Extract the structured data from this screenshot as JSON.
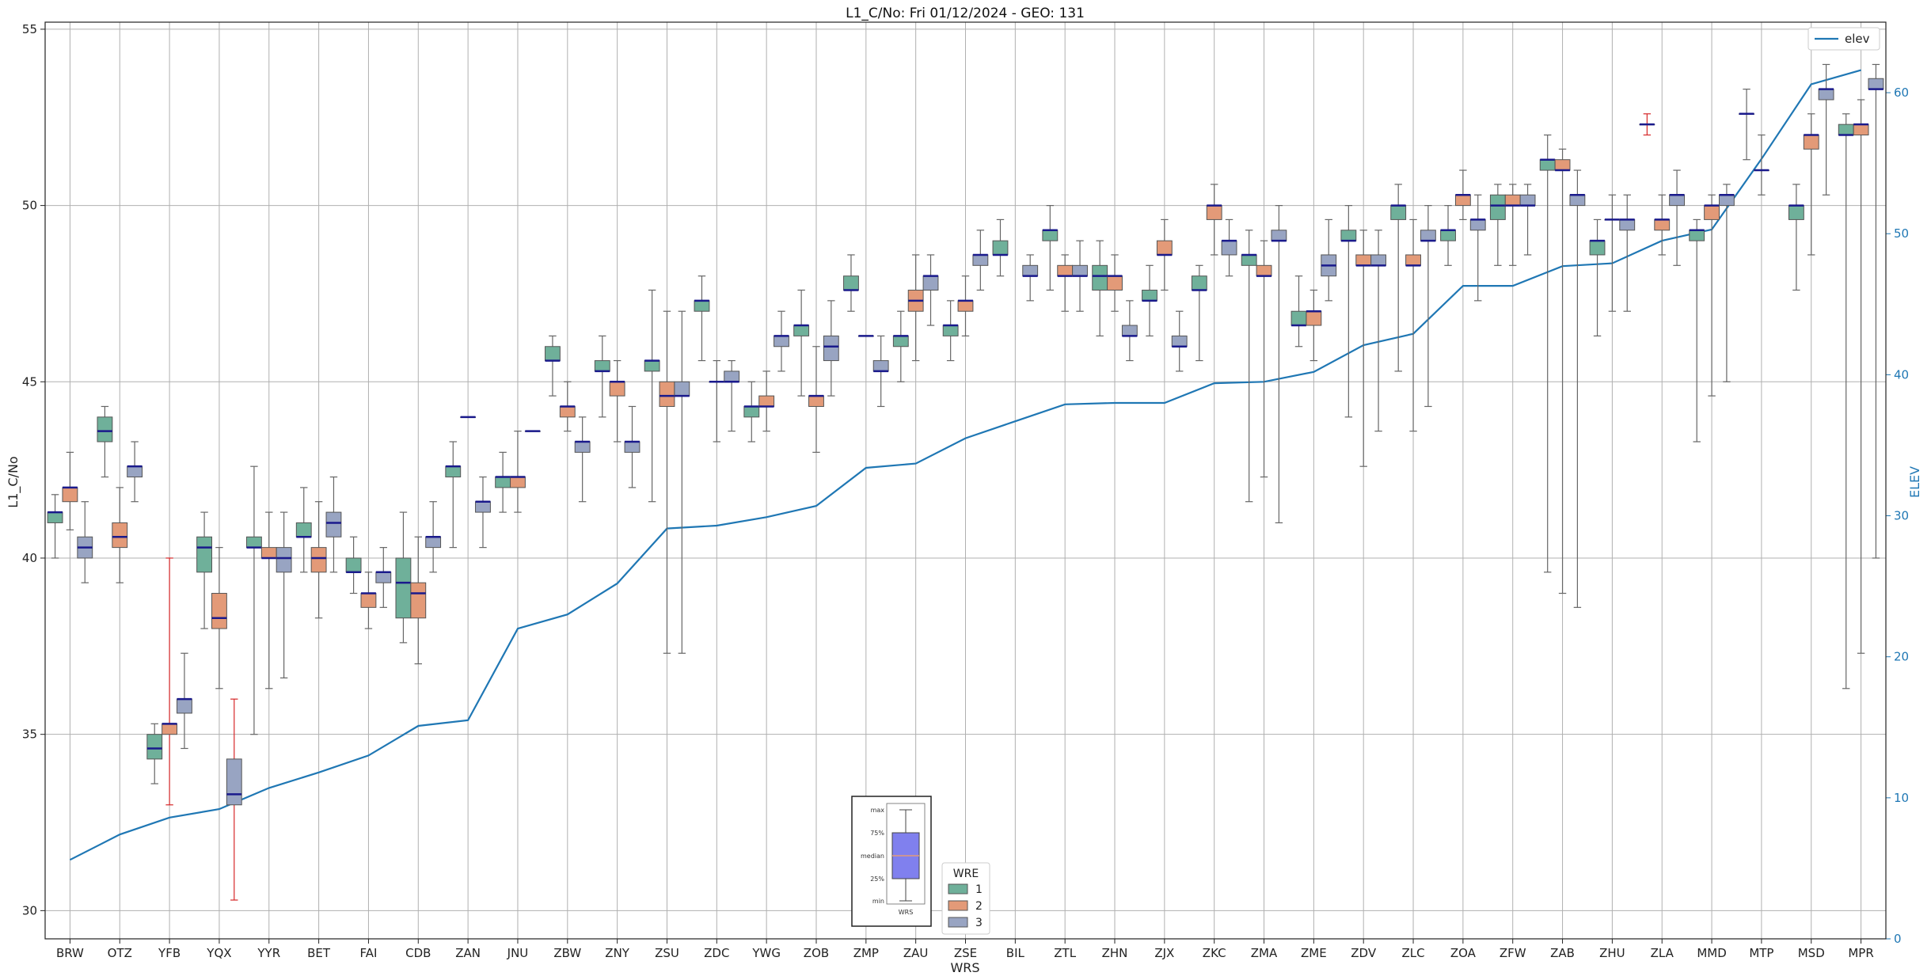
{
  "chart_data": {
    "type": "box",
    "title": "L1_C/No: Fri 01/12/2024 - GEO: 131",
    "xlabel": "WRS",
    "ylabel": "L1_C/No",
    "ylabel_right": "ELEV",
    "ylim": [
      29.2,
      55.2
    ],
    "ylim_right": [
      0,
      65
    ],
    "yticks": [
      30,
      35,
      40,
      45,
      50,
      55
    ],
    "yticks_right": [
      0,
      10,
      20,
      30,
      40,
      50,
      60
    ],
    "grid": true,
    "categories": [
      "BRW",
      "OTZ",
      "YFB",
      "YQX",
      "YYR",
      "BET",
      "FAI",
      "CDB",
      "ZAN",
      "JNU",
      "ZBW",
      "ZNY",
      "ZSU",
      "ZDC",
      "YWG",
      "ZOB",
      "ZMP",
      "ZAU",
      "ZSE",
      "BIL",
      "ZTL",
      "ZHN",
      "ZJX",
      "ZKC",
      "ZMA",
      "ZME",
      "ZDV",
      "ZLC",
      "ZOA",
      "ZFW",
      "ZAB",
      "ZHU",
      "ZLA",
      "MMD",
      "MTP",
      "MSD",
      "MPR"
    ],
    "wre_colors": {
      "1": "#6fb09a",
      "2": "#e39a78",
      "3": "#98a4c2"
    },
    "median_color": "#1a1a8c",
    "boxes": [
      [
        {
          "wre": 1,
          "min": 40.0,
          "q1": 41.0,
          "med": 41.3,
          "q3": 41.3,
          "max": 41.8
        },
        {
          "wre": 2,
          "min": 40.8,
          "q1": 41.6,
          "med": 42.0,
          "q3": 42.0,
          "max": 43.0
        },
        {
          "wre": 3,
          "min": 39.3,
          "q1": 40.0,
          "med": 40.3,
          "q3": 40.6,
          "max": 41.6
        }
      ],
      [
        {
          "wre": 1,
          "min": 42.3,
          "q1": 43.3,
          "med": 43.6,
          "q3": 44.0,
          "max": 44.3
        },
        {
          "wre": 2,
          "min": 39.3,
          "q1": 40.3,
          "med": 40.6,
          "q3": 41.0,
          "max": 42.0
        },
        {
          "wre": 3,
          "min": 41.6,
          "q1": 42.3,
          "med": 42.6,
          "q3": 42.6,
          "max": 43.3
        }
      ],
      [
        {
          "wre": 1,
          "min": 33.6,
          "q1": 34.3,
          "med": 34.6,
          "q3": 35.0,
          "max": 35.3
        },
        {
          "wre": 2,
          "min": 33.0,
          "q1": 35.0,
          "med": 35.3,
          "q3": 35.3,
          "max": 40.0,
          "red": true
        },
        {
          "wre": 3,
          "min": 34.6,
          "q1": 35.6,
          "med": 36.0,
          "q3": 36.0,
          "max": 37.3
        }
      ],
      [
        {
          "wre": 1,
          "min": 38.0,
          "q1": 39.6,
          "med": 40.3,
          "q3": 40.6,
          "max": 41.3
        },
        {
          "wre": 2,
          "min": 36.3,
          "q1": 38.0,
          "med": 38.3,
          "q3": 39.0,
          "max": 40.3
        },
        {
          "wre": 3,
          "min": 30.3,
          "q1": 33.0,
          "med": 33.3,
          "q3": 34.3,
          "max": 36.0,
          "red": true
        }
      ],
      [
        {
          "wre": 1,
          "min": 35.0,
          "q1": 40.3,
          "med": 40.3,
          "q3": 40.6,
          "max": 42.6
        },
        {
          "wre": 2,
          "min": 36.3,
          "q1": 40.0,
          "med": 40.0,
          "q3": 40.3,
          "max": 41.3
        },
        {
          "wre": 3,
          "min": 36.6,
          "q1": 39.6,
          "med": 40.0,
          "q3": 40.3,
          "max": 41.3
        }
      ],
      [
        {
          "wre": 1,
          "min": 39.6,
          "q1": 40.6,
          "med": 40.6,
          "q3": 41.0,
          "max": 42.0
        },
        {
          "wre": 2,
          "min": 38.3,
          "q1": 39.6,
          "med": 40.0,
          "q3": 40.3,
          "max": 41.6
        },
        {
          "wre": 3,
          "min": 39.6,
          "q1": 40.6,
          "med": 41.0,
          "q3": 41.3,
          "max": 42.3
        }
      ],
      [
        {
          "wre": 1,
          "min": 39.0,
          "q1": 39.6,
          "med": 39.6,
          "q3": 40.0,
          "max": 40.6
        },
        {
          "wre": 2,
          "min": 38.0,
          "q1": 38.6,
          "med": 39.0,
          "q3": 39.0,
          "max": 39.6
        },
        {
          "wre": 3,
          "min": 38.6,
          "q1": 39.3,
          "med": 39.6,
          "q3": 39.6,
          "max": 40.3
        }
      ],
      [
        {
          "wre": 1,
          "min": 37.6,
          "q1": 38.3,
          "med": 39.3,
          "q3": 40.0,
          "max": 41.3
        },
        {
          "wre": 2,
          "min": 37.0,
          "q1": 38.3,
          "med": 39.0,
          "q3": 39.3,
          "max": 40.6
        },
        {
          "wre": 3,
          "min": 39.6,
          "q1": 40.3,
          "med": 40.6,
          "q3": 40.6,
          "max": 41.6
        }
      ],
      [
        {
          "wre": 1,
          "min": 40.3,
          "q1": 42.3,
          "med": 42.6,
          "q3": 42.6,
          "max": 43.3
        },
        {
          "wre": 2,
          "min": 44.0,
          "q1": 44.0,
          "med": 44.0,
          "q3": 44.0,
          "max": 44.0
        },
        {
          "wre": 3,
          "min": 40.3,
          "q1": 41.3,
          "med": 41.6,
          "q3": 41.6,
          "max": 42.3
        }
      ],
      [
        {
          "wre": 1,
          "min": 41.3,
          "q1": 42.0,
          "med": 42.3,
          "q3": 42.3,
          "max": 43.0
        },
        {
          "wre": 2,
          "min": 41.3,
          "q1": 42.0,
          "med": 42.3,
          "q3": 42.3,
          "max": 43.6
        },
        {
          "wre": 3,
          "min": 43.6,
          "q1": 43.6,
          "med": 43.6,
          "q3": 43.6,
          "max": 43.6
        }
      ],
      [
        {
          "wre": 1,
          "min": 44.6,
          "q1": 45.6,
          "med": 45.6,
          "q3": 46.0,
          "max": 46.3
        },
        {
          "wre": 2,
          "min": 43.6,
          "q1": 44.0,
          "med": 44.3,
          "q3": 44.3,
          "max": 45.0
        },
        {
          "wre": 3,
          "min": 41.6,
          "q1": 43.0,
          "med": 43.3,
          "q3": 43.3,
          "max": 44.0
        }
      ],
      [
        {
          "wre": 1,
          "min": 44.0,
          "q1": 45.3,
          "med": 45.3,
          "q3": 45.6,
          "max": 46.3
        },
        {
          "wre": 2,
          "min": 43.3,
          "q1": 44.6,
          "med": 45.0,
          "q3": 45.0,
          "max": 45.6
        },
        {
          "wre": 3,
          "min": 42.0,
          "q1": 43.0,
          "med": 43.3,
          "q3": 43.3,
          "max": 44.3
        }
      ],
      [
        {
          "wre": 1,
          "min": 41.6,
          "q1": 45.3,
          "med": 45.6,
          "q3": 45.6,
          "max": 47.6
        },
        {
          "wre": 2,
          "min": 37.3,
          "q1": 44.3,
          "med": 44.6,
          "q3": 45.0,
          "max": 47.0
        },
        {
          "wre": 3,
          "min": 37.3,
          "q1": 44.6,
          "med": 44.6,
          "q3": 45.0,
          "max": 47.0
        }
      ],
      [
        {
          "wre": 1,
          "min": 45.6,
          "q1": 47.0,
          "med": 47.3,
          "q3": 47.3,
          "max": 48.0
        },
        {
          "wre": 2,
          "min": 43.3,
          "q1": 45.0,
          "med": 45.0,
          "q3": 45.0,
          "max": 45.6
        },
        {
          "wre": 3,
          "min": 43.6,
          "q1": 45.0,
          "med": 45.0,
          "q3": 45.3,
          "max": 45.6
        }
      ],
      [
        {
          "wre": 1,
          "min": 43.3,
          "q1": 44.0,
          "med": 44.3,
          "q3": 44.3,
          "max": 45.0
        },
        {
          "wre": 2,
          "min": 43.6,
          "q1": 44.3,
          "med": 44.3,
          "q3": 44.6,
          "max": 45.3
        },
        {
          "wre": 3,
          "min": 45.3,
          "q1": 46.0,
          "med": 46.3,
          "q3": 46.3,
          "max": 47.0
        }
      ],
      [
        {
          "wre": 1,
          "min": 44.6,
          "q1": 46.3,
          "med": 46.6,
          "q3": 46.6,
          "max": 47.6
        },
        {
          "wre": 2,
          "min": 43.0,
          "q1": 44.3,
          "med": 44.6,
          "q3": 44.6,
          "max": 46.0
        },
        {
          "wre": 3,
          "min": 44.6,
          "q1": 45.6,
          "med": 46.0,
          "q3": 46.3,
          "max": 47.3
        }
      ],
      [
        {
          "wre": 1,
          "min": 47.0,
          "q1": 47.6,
          "med": 47.6,
          "q3": 48.0,
          "max": 48.6
        },
        {
          "wre": 2,
          "min": 46.3,
          "q1": 46.3,
          "med": 46.3,
          "q3": 46.3,
          "max": 46.3
        },
        {
          "wre": 3,
          "min": 44.3,
          "q1": 45.3,
          "med": 45.3,
          "q3": 45.6,
          "max": 46.3
        }
      ],
      [
        {
          "wre": 1,
          "min": 45.0,
          "q1": 46.0,
          "med": 46.3,
          "q3": 46.3,
          "max": 47.0
        },
        {
          "wre": 2,
          "min": 45.6,
          "q1": 47.0,
          "med": 47.3,
          "q3": 47.6,
          "max": 48.6
        },
        {
          "wre": 3,
          "min": 46.6,
          "q1": 47.6,
          "med": 48.0,
          "q3": 48.0,
          "max": 48.6
        }
      ],
      [
        {
          "wre": 1,
          "min": 45.6,
          "q1": 46.3,
          "med": 46.6,
          "q3": 46.6,
          "max": 47.3
        },
        {
          "wre": 2,
          "min": 46.3,
          "q1": 47.0,
          "med": 47.3,
          "q3": 47.3,
          "max": 48.0
        },
        {
          "wre": 3,
          "min": 47.6,
          "q1": 48.3,
          "med": 48.6,
          "q3": 48.6,
          "max": 49.3
        }
      ],
      [
        {
          "wre": 1,
          "min": 48.0,
          "q1": 48.6,
          "med": 48.6,
          "q3": 49.0,
          "max": 49.6
        },
        {
          "wre": 3,
          "min": 47.3,
          "q1": 48.0,
          "med": 48.0,
          "q3": 48.3,
          "max": 48.6
        }
      ],
      [
        {
          "wre": 1,
          "min": 47.6,
          "q1": 49.0,
          "med": 49.3,
          "q3": 49.3,
          "max": 50.0
        },
        {
          "wre": 2,
          "min": 47.0,
          "q1": 48.0,
          "med": 48.0,
          "q3": 48.3,
          "max": 48.6
        },
        {
          "wre": 3,
          "min": 47.0,
          "q1": 48.0,
          "med": 48.0,
          "q3": 48.3,
          "max": 49.0
        }
      ],
      [
        {
          "wre": 1,
          "min": 46.3,
          "q1": 47.6,
          "med": 48.0,
          "q3": 48.3,
          "max": 49.0
        },
        {
          "wre": 2,
          "min": 47.0,
          "q1": 47.6,
          "med": 48.0,
          "q3": 48.0,
          "max": 48.6
        },
        {
          "wre": 3,
          "min": 45.6,
          "q1": 46.3,
          "med": 46.3,
          "q3": 46.6,
          "max": 47.3
        }
      ],
      [
        {
          "wre": 1,
          "min": 46.3,
          "q1": 47.3,
          "med": 47.3,
          "q3": 47.6,
          "max": 48.3
        },
        {
          "wre": 2,
          "min": 47.6,
          "q1": 48.6,
          "med": 48.6,
          "q3": 49.0,
          "max": 49.6
        },
        {
          "wre": 3,
          "min": 45.3,
          "q1": 46.0,
          "med": 46.0,
          "q3": 46.3,
          "max": 47.0
        }
      ],
      [
        {
          "wre": 1,
          "min": 45.6,
          "q1": 47.6,
          "med": 47.6,
          "q3": 48.0,
          "max": 48.3
        },
        {
          "wre": 2,
          "min": 48.6,
          "q1": 49.6,
          "med": 50.0,
          "q3": 50.0,
          "max": 50.6
        },
        {
          "wre": 3,
          "min": 48.0,
          "q1": 48.6,
          "med": 49.0,
          "q3": 49.0,
          "max": 49.6
        }
      ],
      [
        {
          "wre": 1,
          "min": 41.6,
          "q1": 48.3,
          "med": 48.6,
          "q3": 48.6,
          "max": 49.3
        },
        {
          "wre": 2,
          "min": 42.3,
          "q1": 48.0,
          "med": 48.0,
          "q3": 48.3,
          "max": 49.0
        },
        {
          "wre": 3,
          "min": 41.0,
          "q1": 49.0,
          "med": 49.0,
          "q3": 49.3,
          "max": 50.0
        }
      ],
      [
        {
          "wre": 1,
          "min": 46.0,
          "q1": 46.6,
          "med": 46.6,
          "q3": 47.0,
          "max": 48.0
        },
        {
          "wre": 2,
          "min": 45.6,
          "q1": 46.6,
          "med": 47.0,
          "q3": 47.0,
          "max": 47.6
        },
        {
          "wre": 3,
          "min": 47.3,
          "q1": 48.0,
          "med": 48.3,
          "q3": 48.6,
          "max": 49.6
        }
      ],
      [
        {
          "wre": 1,
          "min": 44.0,
          "q1": 49.0,
          "med": 49.0,
          "q3": 49.3,
          "max": 50.0
        },
        {
          "wre": 2,
          "min": 42.6,
          "q1": 48.3,
          "med": 48.3,
          "q3": 48.6,
          "max": 49.3
        },
        {
          "wre": 3,
          "min": 43.6,
          "q1": 48.3,
          "med": 48.3,
          "q3": 48.6,
          "max": 49.3
        }
      ],
      [
        {
          "wre": 1,
          "min": 45.3,
          "q1": 49.6,
          "med": 50.0,
          "q3": 50.0,
          "max": 50.6
        },
        {
          "wre": 2,
          "min": 43.6,
          "q1": 48.3,
          "med": 48.3,
          "q3": 48.6,
          "max": 49.6
        },
        {
          "wre": 3,
          "min": 44.3,
          "q1": 49.0,
          "med": 49.0,
          "q3": 49.3,
          "max": 50.0
        }
      ],
      [
        {
          "wre": 1,
          "min": 48.3,
          "q1": 49.0,
          "med": 49.3,
          "q3": 49.3,
          "max": 50.0
        },
        {
          "wre": 2,
          "min": 49.6,
          "q1": 50.0,
          "med": 50.3,
          "q3": 50.3,
          "max": 51.0
        },
        {
          "wre": 3,
          "min": 47.3,
          "q1": 49.3,
          "med": 49.6,
          "q3": 49.6,
          "max": 50.3
        }
      ],
      [
        {
          "wre": 1,
          "min": 48.3,
          "q1": 49.6,
          "med": 50.0,
          "q3": 50.3,
          "max": 50.6
        },
        {
          "wre": 2,
          "min": 48.3,
          "q1": 50.0,
          "med": 50.0,
          "q3": 50.3,
          "max": 50.6
        },
        {
          "wre": 3,
          "min": 48.6,
          "q1": 50.0,
          "med": 50.0,
          "q3": 50.3,
          "max": 50.6
        }
      ],
      [
        {
          "wre": 1,
          "min": 39.6,
          "q1": 51.0,
          "med": 51.3,
          "q3": 51.3,
          "max": 52.0
        },
        {
          "wre": 2,
          "min": 39.0,
          "q1": 51.0,
          "med": 51.0,
          "q3": 51.3,
          "max": 51.6
        },
        {
          "wre": 3,
          "min": 38.6,
          "q1": 50.0,
          "med": 50.3,
          "q3": 50.3,
          "max": 51.0
        }
      ],
      [
        {
          "wre": 1,
          "min": 46.3,
          "q1": 48.6,
          "med": 49.0,
          "q3": 49.0,
          "max": 49.6
        },
        {
          "wre": 2,
          "min": 47.0,
          "q1": 49.6,
          "med": 49.6,
          "q3": 49.6,
          "max": 50.3
        },
        {
          "wre": 3,
          "min": 47.0,
          "q1": 49.3,
          "med": 49.6,
          "q3": 49.6,
          "max": 50.3
        }
      ],
      [
        {
          "wre": 1,
          "min": 52.0,
          "q1": 52.3,
          "med": 52.3,
          "q3": 52.3,
          "max": 52.6,
          "red": true
        },
        {
          "wre": 2,
          "min": 48.6,
          "q1": 49.3,
          "med": 49.6,
          "q3": 49.6,
          "max": 50.3
        },
        {
          "wre": 3,
          "min": 48.3,
          "q1": 50.0,
          "med": 50.3,
          "q3": 50.3,
          "max": 51.0
        }
      ],
      [
        {
          "wre": 1,
          "min": 43.3,
          "q1": 49.0,
          "med": 49.3,
          "q3": 49.3,
          "max": 49.6
        },
        {
          "wre": 2,
          "min": 44.6,
          "q1": 49.6,
          "med": 50.0,
          "q3": 50.0,
          "max": 50.3
        },
        {
          "wre": 3,
          "min": 45.0,
          "q1": 50.0,
          "med": 50.3,
          "q3": 50.3,
          "max": 50.6
        }
      ],
      [
        {
          "wre": 1,
          "min": 51.3,
          "q1": 52.6,
          "med": 52.6,
          "q3": 52.6,
          "max": 53.3
        },
        {
          "wre": 2,
          "min": 50.3,
          "q1": 51.0,
          "med": 51.0,
          "q3": 51.0,
          "max": 52.0
        }
      ],
      [
        {
          "wre": 1,
          "min": 47.6,
          "q1": 49.6,
          "med": 50.0,
          "q3": 50.0,
          "max": 50.6
        },
        {
          "wre": 2,
          "min": 48.6,
          "q1": 51.6,
          "med": 52.0,
          "q3": 52.0,
          "max": 52.6
        },
        {
          "wre": 3,
          "min": 50.3,
          "q1": 53.0,
          "med": 53.3,
          "q3": 53.3,
          "max": 54.0
        }
      ],
      [
        {
          "wre": 1,
          "min": 36.3,
          "q1": 52.0,
          "med": 52.0,
          "q3": 52.3,
          "max": 52.6
        },
        {
          "wre": 2,
          "min": 37.3,
          "q1": 52.0,
          "med": 52.3,
          "q3": 52.3,
          "max": 53.0
        },
        {
          "wre": 3,
          "min": 40.0,
          "q1": 53.3,
          "med": 53.3,
          "q3": 53.6,
          "max": 54.0
        }
      ]
    ],
    "series": [
      {
        "name": "elev",
        "axis": "right",
        "color": "#1f77b4",
        "values": [
          5.6,
          7.4,
          8.6,
          9.2,
          10.7,
          11.8,
          13.0,
          15.1,
          15.5,
          22.0,
          23.0,
          25.2,
          29.1,
          29.3,
          29.9,
          30.7,
          33.4,
          33.7,
          35.5,
          36.7,
          37.9,
          38.0,
          38.0,
          39.4,
          39.5,
          40.2,
          42.1,
          42.9,
          46.3,
          46.3,
          47.7,
          47.9,
          49.5,
          50.3,
          55.3,
          60.6,
          61.6
        ]
      }
    ],
    "legend_elev": {
      "label": "elev",
      "placement": "top-right"
    },
    "legend_wre": {
      "title": "WRE",
      "labels": [
        "1",
        "2",
        "3"
      ],
      "placement": "bottom-center"
    },
    "inset": {
      "labels": [
        "max",
        "75%",
        "median",
        "25%",
        "min"
      ],
      "xlabel": "WRS"
    }
  }
}
